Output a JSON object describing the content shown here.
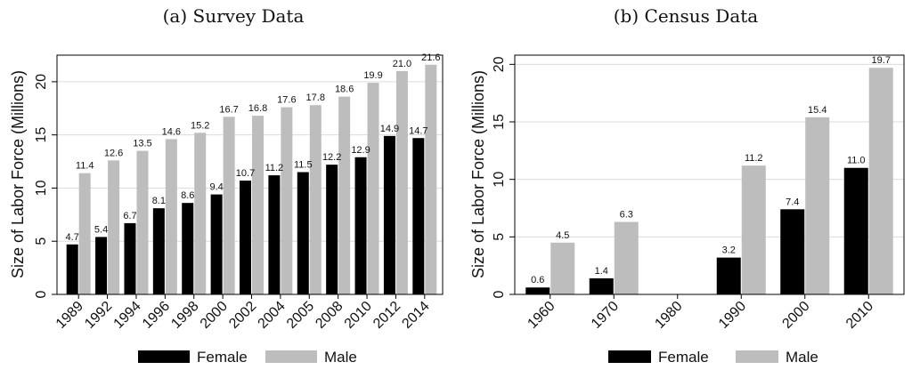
{
  "chart_data": [
    {
      "type": "bar",
      "title": "(a) Survey Data",
      "ylabel": "Size of Labor Force (Millions)",
      "xlabel": "",
      "categories": [
        "1989",
        "1992",
        "1994",
        "1996",
        "1998",
        "2000",
        "2002",
        "2004",
        "2005",
        "2008",
        "2010",
        "2012",
        "2014"
      ],
      "series": [
        {
          "name": "Female",
          "values": [
            4.7,
            5.4,
            6.7,
            8.1,
            8.6,
            9.4,
            10.7,
            11.2,
            11.5,
            12.2,
            12.9,
            14.9,
            14.7
          ]
        },
        {
          "name": "Male",
          "values": [
            11.4,
            12.6,
            13.5,
            14.6,
            15.2,
            16.7,
            16.8,
            17.6,
            17.8,
            18.6,
            19.9,
            21.0,
            21.6
          ]
        }
      ],
      "data_labels": {
        "Female": [
          "4.7",
          "5.4",
          "6.7",
          "8.1",
          "8.6",
          "9.4",
          "10.7",
          "11.2",
          "11.5",
          "12.2",
          "12.9",
          "14.9",
          "14.7"
        ],
        "Male": [
          "11.4",
          "12.6",
          "13.5",
          "14.6",
          "15.2",
          "16.7",
          "16.8",
          "17.6",
          "17.8",
          "18.6",
          "19.9",
          "21.0",
          "21.6"
        ]
      },
      "ylim": [
        0,
        22.5
      ],
      "yticks": [
        0,
        5,
        10,
        15,
        20
      ],
      "grid": true,
      "legend": "bottom"
    },
    {
      "type": "bar",
      "title": "(b) Census Data",
      "ylabel": "Size of Labor Force (Millions)",
      "xlabel": "",
      "categories": [
        "1960",
        "1970",
        "1980",
        "1990",
        "2000",
        "2010"
      ],
      "series": [
        {
          "name": "Female",
          "values": [
            0.6,
            1.4,
            null,
            3.2,
            7.4,
            11.0
          ]
        },
        {
          "name": "Male",
          "values": [
            4.5,
            6.3,
            null,
            11.2,
            15.4,
            19.7
          ]
        }
      ],
      "data_labels": {
        "Female": [
          "0.6",
          "1.4",
          "",
          "3.2",
          "7.4",
          "11.0"
        ],
        "Male": [
          "4.5",
          "6.3",
          "",
          "11.2",
          "15.4",
          "19.7"
        ]
      },
      "ylim": [
        0,
        20.8
      ],
      "yticks": [
        0,
        5,
        10,
        15,
        20
      ],
      "grid": true,
      "legend": "bottom"
    }
  ],
  "colors": {
    "female": "#000000",
    "male": "#bdbdbd"
  }
}
